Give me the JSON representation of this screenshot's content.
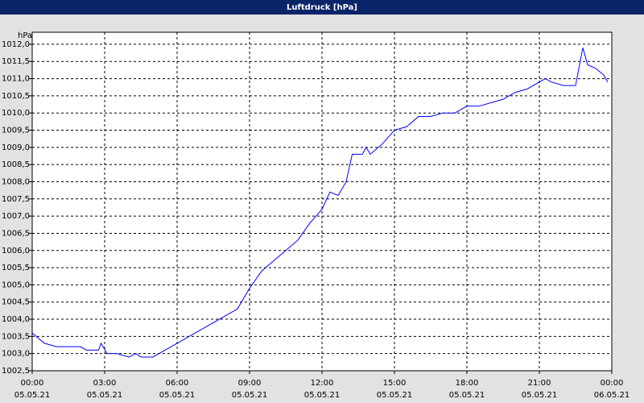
{
  "chart_data": {
    "type": "line",
    "title": "Luftdruck [hPa]",
    "y_label": "hPa",
    "x": [
      0,
      0.33,
      0.5,
      1,
      1.5,
      2,
      2.25,
      2.75,
      2.85,
      3.1,
      3.5,
      4,
      4.3,
      4.5,
      5,
      5.25,
      5.5,
      6,
      6.5,
      7,
      7.5,
      8,
      8.5,
      9,
      9.5,
      10,
      10.5,
      11,
      11.5,
      12,
      12.33,
      12.67,
      13,
      13.25,
      13.67,
      13.83,
      14,
      14.5,
      15,
      15.5,
      16,
      16.5,
      17,
      17.5,
      18,
      18.5,
      19,
      19.5,
      20,
      20.5,
      21,
      21.25,
      21.5,
      22,
      22.5,
      22.8,
      23,
      23.33,
      23.5,
      23.67,
      23.83
    ],
    "series": [
      {
        "name": "Luftdruck",
        "color": "#0000ff",
        "values": [
          1003.6,
          1003.4,
          1003.3,
          1003.2,
          1003.2,
          1003.2,
          1003.1,
          1003.1,
          1003.3,
          1003.0,
          1003.0,
          1002.9,
          1003.0,
          1002.9,
          1002.9,
          1003.0,
          1003.1,
          1003.3,
          1003.5,
          1003.7,
          1003.9,
          1004.1,
          1004.3,
          1004.9,
          1005.4,
          1005.7,
          1006.0,
          1006.3,
          1006.8,
          1007.2,
          1007.7,
          1007.6,
          1008.0,
          1008.8,
          1008.8,
          1009.0,
          1008.8,
          1009.1,
          1009.5,
          1009.6,
          1009.9,
          1009.9,
          1010.0,
          1010.0,
          1010.2,
          1010.2,
          1010.3,
          1010.4,
          1010.6,
          1010.7,
          1010.9,
          1011.0,
          1010.9,
          1010.8,
          1010.8,
          1011.9,
          1011.4,
          1011.3,
          1011.2,
          1011.1,
          1010.9
        ]
      }
    ],
    "xlim": [
      0,
      24
    ],
    "xticks": [
      {
        "value": 0,
        "label": "00:00"
      },
      {
        "value": 3,
        "label": "03:00"
      },
      {
        "value": 6,
        "label": "06:00"
      },
      {
        "value": 9,
        "label": "09:00"
      },
      {
        "value": 12,
        "label": "12:00"
      },
      {
        "value": 15,
        "label": "15:00"
      },
      {
        "value": 18,
        "label": "18:00"
      },
      {
        "value": 21,
        "label": "21:00"
      },
      {
        "value": 24,
        "label": "00:00"
      }
    ],
    "xtick_dates": [
      "05.05.21",
      "05.05.21",
      "05.05.21",
      "05.05.21",
      "05.05.21",
      "05.05.21",
      "05.05.21",
      "05.05.21",
      "06.05.21"
    ],
    "ylim": [
      1002.5,
      1012.35
    ],
    "yticks": [
      {
        "value": 1002.5,
        "label": "1002,5"
      },
      {
        "value": 1003,
        "label": "1003,0"
      },
      {
        "value": 1003.5,
        "label": "1003,5"
      },
      {
        "value": 1004,
        "label": "1004,0"
      },
      {
        "value": 1004.5,
        "label": "1004,5"
      },
      {
        "value": 1005,
        "label": "1005,0"
      },
      {
        "value": 1005.5,
        "label": "1005,5"
      },
      {
        "value": 1006,
        "label": "1006,0"
      },
      {
        "value": 1006.5,
        "label": "1006,5"
      },
      {
        "value": 1007,
        "label": "1007,0"
      },
      {
        "value": 1007.5,
        "label": "1007,5"
      },
      {
        "value": 1008,
        "label": "1008,0"
      },
      {
        "value": 1008.5,
        "label": "1008,5"
      },
      {
        "value": 1009,
        "label": "1009,0"
      },
      {
        "value": 1009.5,
        "label": "1009,5"
      },
      {
        "value": 1010,
        "label": "1010,0"
      },
      {
        "value": 1010.5,
        "label": "1010,5"
      },
      {
        "value": 1011,
        "label": "1011,0"
      },
      {
        "value": 1011.5,
        "label": "1011,5"
      },
      {
        "value": 1012,
        "label": "1012,0"
      }
    ],
    "grid": true
  }
}
